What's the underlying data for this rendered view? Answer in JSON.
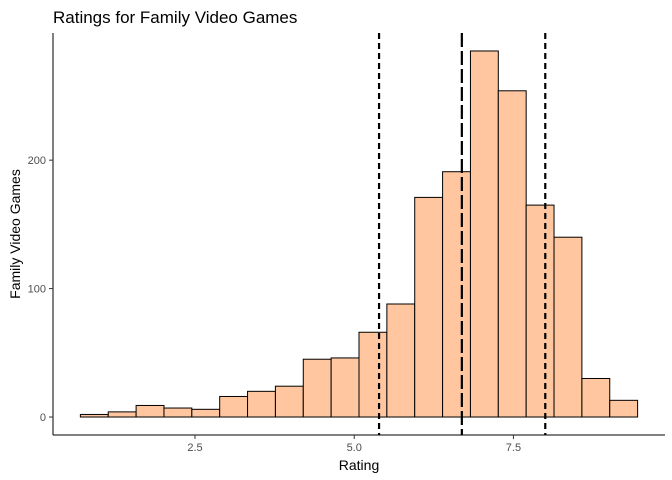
{
  "chart_data": {
    "type": "histogram",
    "title": "Ratings for Family Video Games",
    "xlabel": "Rating",
    "ylabel": "Family Video Games",
    "bin_width": 0.4375,
    "bins": [
      {
        "start": 0.7,
        "end": 1.1375,
        "count": 2
      },
      {
        "start": 1.1375,
        "end": 1.575,
        "count": 4
      },
      {
        "start": 1.575,
        "end": 2.0125,
        "count": 9
      },
      {
        "start": 2.0125,
        "end": 2.45,
        "count": 7
      },
      {
        "start": 2.45,
        "end": 2.8875,
        "count": 6
      },
      {
        "start": 2.8875,
        "end": 3.325,
        "count": 16
      },
      {
        "start": 3.325,
        "end": 3.7625,
        "count": 20
      },
      {
        "start": 3.7625,
        "end": 4.2,
        "count": 24
      },
      {
        "start": 4.2,
        "end": 4.6375,
        "count": 45
      },
      {
        "start": 4.6375,
        "end": 5.075,
        "count": 46
      },
      {
        "start": 5.075,
        "end": 5.5125,
        "count": 66
      },
      {
        "start": 5.5125,
        "end": 5.95,
        "count": 88
      },
      {
        "start": 5.95,
        "end": 6.3875,
        "count": 171
      },
      {
        "start": 6.3875,
        "end": 6.825,
        "count": 191
      },
      {
        "start": 6.825,
        "end": 7.2625,
        "count": 285
      },
      {
        "start": 7.2625,
        "end": 7.7,
        "count": 254
      },
      {
        "start": 7.7,
        "end": 8.1375,
        "count": 165
      },
      {
        "start": 8.1375,
        "end": 8.575,
        "count": 140
      },
      {
        "start": 8.575,
        "end": 9.0125,
        "count": 30
      },
      {
        "start": 9.0125,
        "end": 9.45,
        "count": 13
      }
    ],
    "reference_lines": [
      {
        "x": 5.39,
        "style": "dashed"
      },
      {
        "x": 6.69,
        "style": "longdash"
      },
      {
        "x": 8.0,
        "style": "dashed"
      }
    ],
    "xlim": [
      0.27,
      9.88
    ],
    "ylim": [
      -14,
      299
    ],
    "x_ticks": [
      {
        "value": 2.5,
        "label": "2.5"
      },
      {
        "value": 5.0,
        "label": "5.0"
      },
      {
        "value": 7.5,
        "label": "7.5"
      }
    ],
    "y_ticks": [
      {
        "value": 0,
        "label": "0"
      },
      {
        "value": 100,
        "label": "100"
      },
      {
        "value": 200,
        "label": "200"
      }
    ],
    "grid": false,
    "bar_fill": "#FFC69F",
    "bar_stroke": "#000000"
  }
}
